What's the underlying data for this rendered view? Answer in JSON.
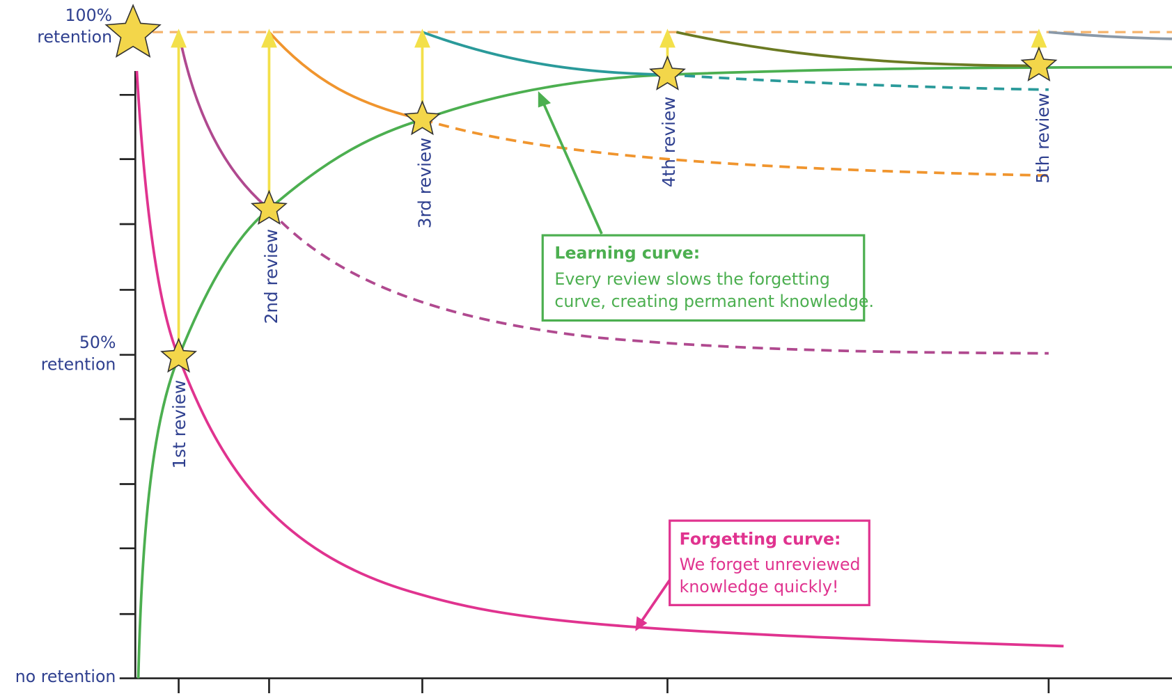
{
  "axis": {
    "top": [
      "100%",
      "retention"
    ],
    "middle": [
      "50%",
      "retention"
    ],
    "bottom": "no retention"
  },
  "reviews": [
    "1st review",
    "2nd review",
    "3rd review",
    "4th review",
    "5th review"
  ],
  "callouts": {
    "learning": {
      "title": "Learning curve:",
      "lines": [
        "Every review slows the forgetting",
        "curve, creating permanent knowledge."
      ]
    },
    "forgetting": {
      "title": "Forgetting curve:",
      "lines": [
        "We forget unreviewed",
        "knowledge quickly!"
      ]
    }
  }
}
